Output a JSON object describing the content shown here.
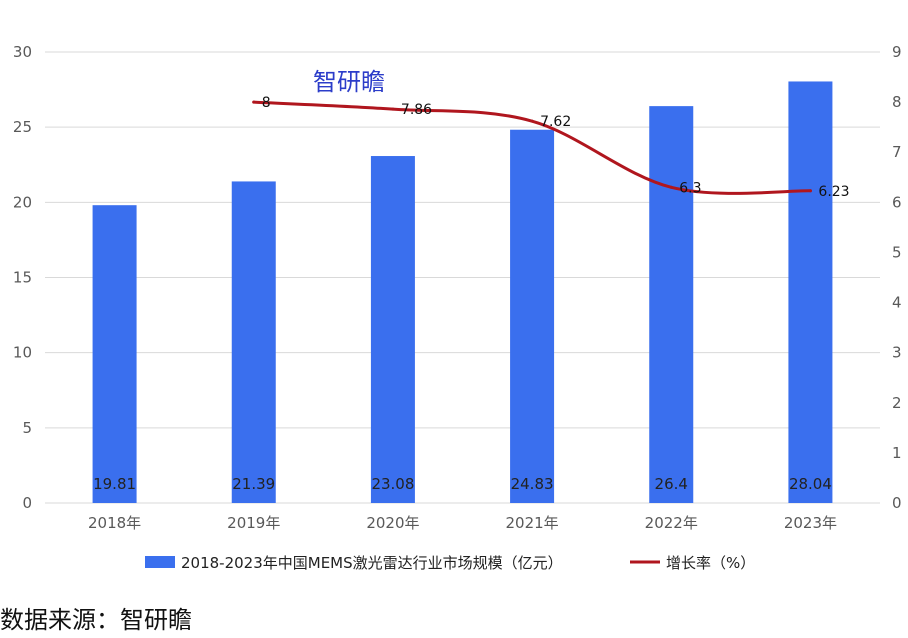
{
  "watermark": "智研瞻",
  "source": "数据来源：智研瞻",
  "colors": {
    "bar": "#3a6fee",
    "line": "#b0161e",
    "grid": "#d9d9d9",
    "axis_text": "#595959"
  },
  "chart_data": {
    "type": "bar",
    "categories": [
      "2018年",
      "2019年",
      "2020年",
      "2021年",
      "2022年",
      "2023年"
    ],
    "series": [
      {
        "name": "2018-2023年中国MEMS激光雷达行业市场规模（亿元）",
        "type": "bar",
        "axis": "left",
        "values": [
          19.81,
          21.39,
          23.08,
          24.83,
          26.4,
          28.04
        ],
        "labels": [
          "19.81",
          "21.39",
          "23.08",
          "24.83",
          "26.4",
          "28.04"
        ]
      },
      {
        "name": "增长率（%）",
        "type": "line",
        "axis": "right",
        "values": [
          null,
          8,
          7.86,
          7.62,
          6.3,
          6.23
        ],
        "labels": [
          "",
          "8",
          "7.86",
          "7.62",
          "6.3",
          "6.23"
        ]
      }
    ],
    "y_left": {
      "min": 0,
      "max": 30,
      "ticks": [
        "0",
        "5",
        "10",
        "15",
        "20",
        "25",
        "30"
      ]
    },
    "y_right": {
      "min": 0,
      "max": 9,
      "ticks": [
        "0",
        "1",
        "2",
        "3",
        "4",
        "5",
        "6",
        "7",
        "8",
        "9"
      ]
    },
    "grid": true,
    "legend": "bottom"
  }
}
